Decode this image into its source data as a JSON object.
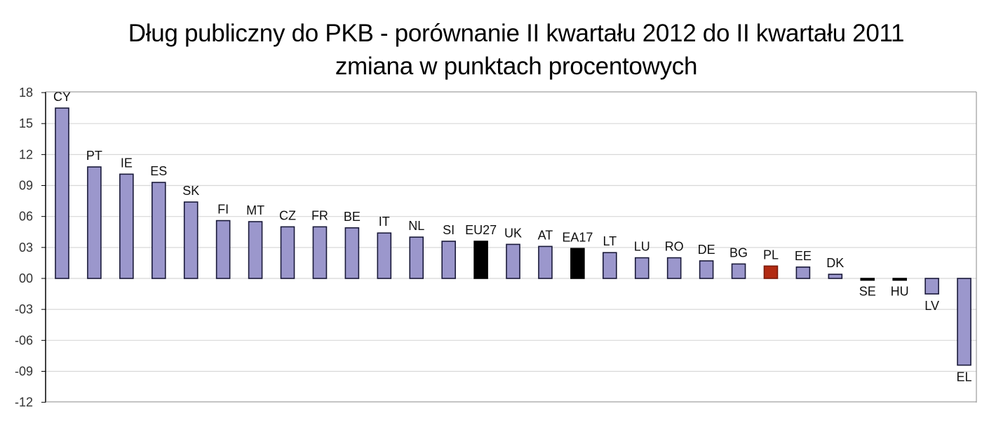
{
  "title": {
    "line1": "Dług publiczny do PKB - porównanie II kwartału 2012 do II kwartału 2011",
    "line2": "zmiana w punktach procentowych"
  },
  "colors": {
    "default_bar": "#9b97cc",
    "aggregate_bar": "#000000",
    "highlight_bar": "#b22a12",
    "bar_border": "#1a1a3a",
    "grid": "#d8d8d8"
  },
  "chart_data": {
    "type": "bar",
    "title": "Dług publiczny do PKB - porównanie II kwartału 2012 do II kwartału 2011 / zmiana w punktach procentowych",
    "xlabel": "",
    "ylabel": "",
    "ylim": [
      -12,
      18
    ],
    "yticks": [
      18,
      15,
      12,
      9,
      6,
      3,
      0,
      -3,
      -6,
      -9,
      -12
    ],
    "ytick_labels": [
      "18",
      "15",
      "12",
      "09",
      "06",
      "03",
      "00",
      "-03",
      "-06",
      "-09",
      "-12"
    ],
    "grid": true,
    "legend": null,
    "categories": [
      "CY",
      "PT",
      "IE",
      "ES",
      "SK",
      "FI",
      "MT",
      "CZ",
      "FR",
      "BE",
      "IT",
      "NL",
      "SI",
      "EU27",
      "UK",
      "AT",
      "EA17",
      "LT",
      "LU",
      "RO",
      "DE",
      "BG",
      "PL",
      "EE",
      "DK",
      "SE",
      "HU",
      "LV",
      "EL"
    ],
    "values": [
      16.5,
      10.8,
      10.1,
      9.3,
      7.4,
      5.6,
      5.5,
      5.0,
      5.0,
      4.9,
      4.4,
      4.0,
      3.6,
      3.6,
      3.3,
      3.1,
      2.9,
      2.5,
      2.0,
      2.0,
      1.7,
      1.4,
      1.2,
      1.1,
      0.4,
      -0.1,
      -0.1,
      -1.5,
      -8.4
    ],
    "bar_types": [
      "d",
      "d",
      "d",
      "d",
      "d",
      "d",
      "d",
      "d",
      "d",
      "d",
      "d",
      "d",
      "d",
      "a",
      "d",
      "d",
      "a",
      "d",
      "d",
      "d",
      "d",
      "d",
      "h",
      "d",
      "d",
      "a",
      "a",
      "d",
      "d"
    ]
  }
}
